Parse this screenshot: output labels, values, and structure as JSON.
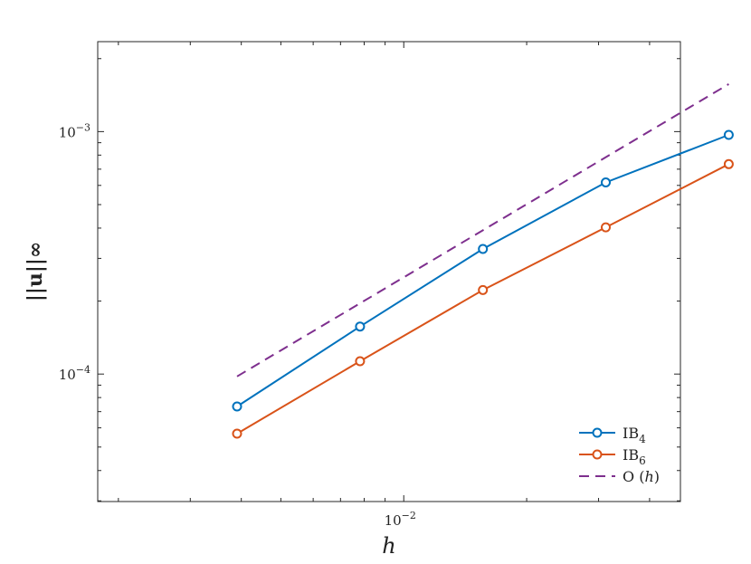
{
  "chart_data": {
    "type": "line",
    "xscale": "log",
    "yscale": "log",
    "xlim": [
      0.00178,
      0.0476
    ],
    "ylim": [
      2.98e-05,
      0.00235
    ],
    "xlabel": "h",
    "ylabel": "||u||∞",
    "x_ticks": [
      {
        "value": 0.01,
        "label": "10^-2"
      }
    ],
    "y_ticks": [
      {
        "value": 0.0001,
        "label": "10^-4"
      },
      {
        "value": 0.001,
        "label": "10^-3"
      }
    ],
    "grid": false,
    "legend": "bottom-right",
    "series": [
      {
        "name": "IB4",
        "label_base": "IB",
        "label_sub": "4",
        "color": "#0072BD",
        "style": "solid",
        "marker": "circle",
        "x": [
          0.003906,
          0.007813,
          0.015625,
          0.03125,
          0.0625
        ],
        "y": [
          7.35e-05,
          0.000157,
          0.000328,
          0.000617,
          0.000969
        ]
      },
      {
        "name": "IB6",
        "label_base": "IB",
        "label_sub": "6",
        "color": "#D95319",
        "style": "solid",
        "marker": "circle",
        "x": [
          0.003906,
          0.007813,
          0.015625,
          0.03125,
          0.0625
        ],
        "y": [
          5.68e-05,
          0.000113,
          0.000222,
          0.000403,
          0.000734
        ]
      },
      {
        "name": "O (h)",
        "label_base": "O (h)",
        "label_sub": "",
        "color": "#7E2F8E",
        "style": "dashed",
        "marker": "none",
        "x": [
          0.003906,
          0.0625
        ],
        "y": [
          9.78e-05,
          0.00157
        ]
      }
    ]
  }
}
